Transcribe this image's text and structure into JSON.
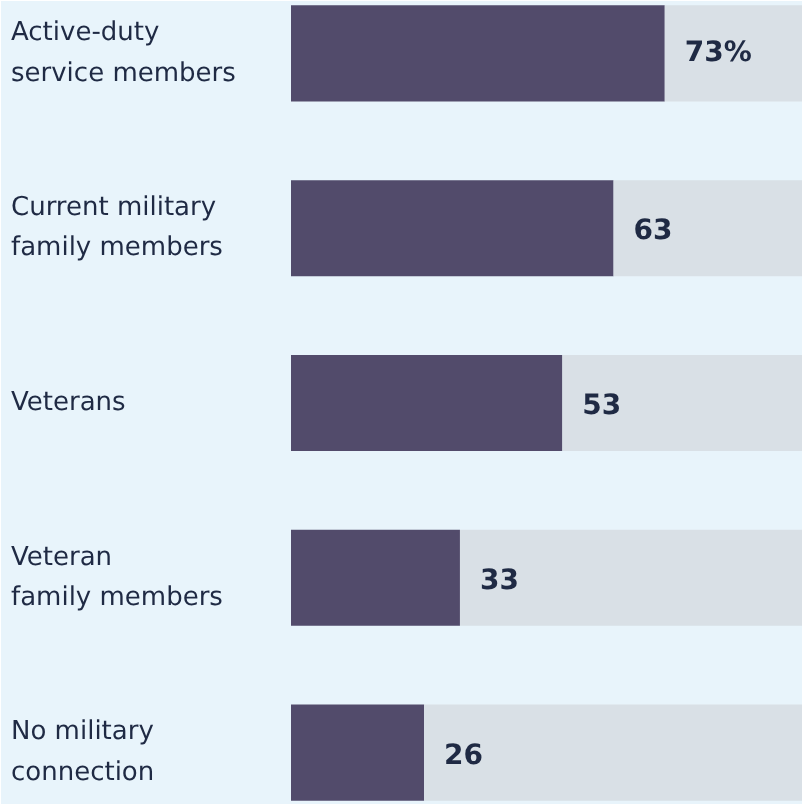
{
  "chart_data": {
    "type": "bar",
    "orientation": "horizontal",
    "stacked": true,
    "categories": [
      "Active-duty\nservice members",
      "Current military\nfamily members",
      "Veterans",
      "Veteran\nfamily members",
      "No military\nconnection"
    ],
    "tick_labels": false,
    "grid": false,
    "series": [
      {
        "color": "#524b6b",
        "values": [
          73,
          63,
          53,
          33,
          26
        ],
        "value_labels": [
          "73%",
          "63",
          "53",
          "33",
          "26"
        ]
      },
      {
        "color": "#d9e0e6",
        "values": [
          27,
          37,
          47,
          67,
          74
        ]
      }
    ]
  }
}
